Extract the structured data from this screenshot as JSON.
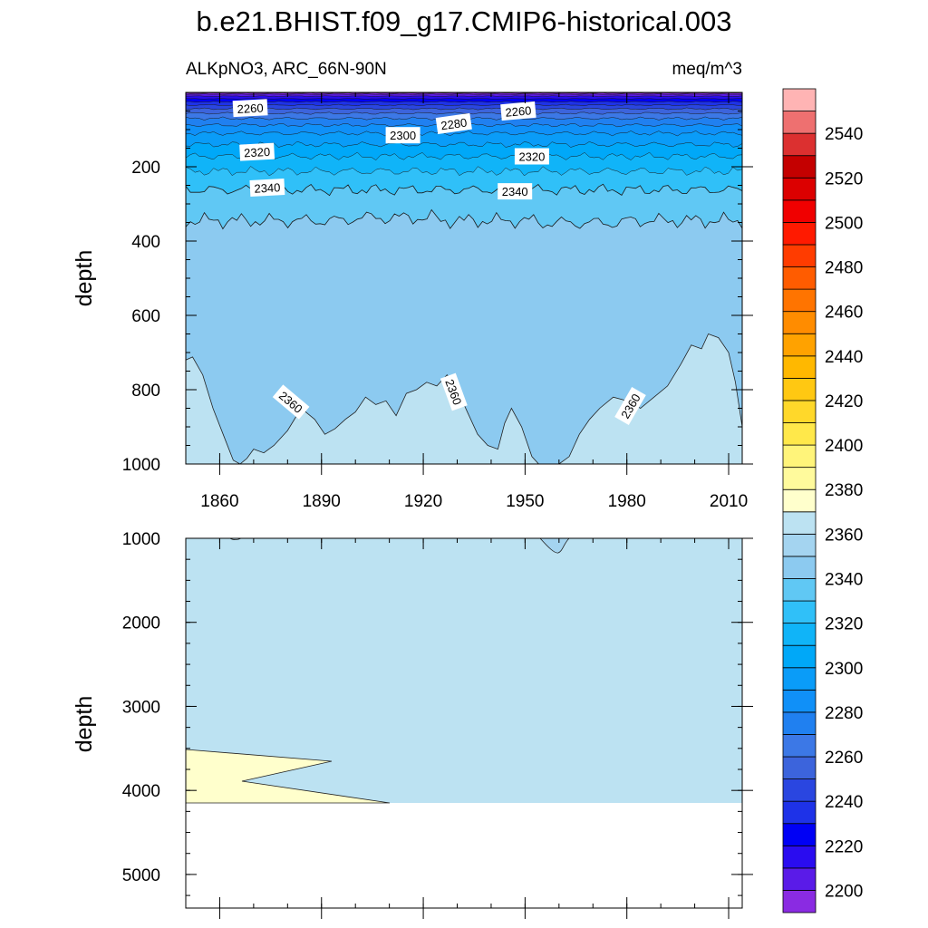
{
  "chart_data": {
    "type": "contour",
    "title": "b.e21.BHIST.f09_g17.CMIP6-historical.003",
    "left_string": "ALKpNO3, ARC_66N-90N",
    "right_string": "meq/m^3",
    "ylabel": "depth",
    "x_ticks": [
      1860,
      1890,
      1920,
      1950,
      1980,
      2010
    ],
    "xlim": [
      1850,
      2014
    ],
    "panels": [
      {
        "name": "upper",
        "ylim": [
          0,
          1000
        ],
        "y_ticks": [
          200,
          400,
          600,
          800,
          1000
        ]
      },
      {
        "name": "lower",
        "ylim": [
          1000,
          5400
        ],
        "y_ticks": [
          1000,
          2000,
          3000,
          4000,
          5000
        ]
      }
    ],
    "contour_labels": [
      {
        "text": "2260",
        "year": 1869,
        "depth": 42,
        "angle": -3
      },
      {
        "text": "2260",
        "year": 1948,
        "depth": 50,
        "angle": -5
      },
      {
        "text": "2280",
        "year": 1929,
        "depth": 84,
        "angle": -8
      },
      {
        "text": "2300",
        "year": 1914,
        "depth": 115,
        "angle": 0
      },
      {
        "text": "2320",
        "year": 1871,
        "depth": 160,
        "angle": -3
      },
      {
        "text": "2320",
        "year": 1952,
        "depth": 172,
        "angle": 0
      },
      {
        "text": "2340",
        "year": 1874,
        "depth": 256,
        "angle": -3
      },
      {
        "text": "2340",
        "year": 1947,
        "depth": 266,
        "angle": 0
      },
      {
        "text": "2360",
        "year": 1881,
        "depth": 833,
        "angle": 40
      },
      {
        "text": "2360",
        "year": 1929,
        "depth": 806,
        "angle": 70
      },
      {
        "text": "2360",
        "year": 1981,
        "depth": 844,
        "angle": -60
      }
    ],
    "levels": [
      2200,
      2210,
      2220,
      2230,
      2240,
      2250,
      2260,
      2270,
      2280,
      2290,
      2300,
      2310,
      2320,
      2330,
      2340,
      2350,
      2360,
      2370,
      2380,
      2390,
      2400,
      2410,
      2420,
      2430,
      2440,
      2450,
      2460,
      2470,
      2480,
      2490,
      2500,
      2510,
      2520,
      2530,
      2540,
      2550
    ],
    "colorbar_labels": [
      2200,
      2220,
      2240,
      2260,
      2280,
      2300,
      2320,
      2340,
      2360,
      2380,
      2400,
      2420,
      2440,
      2460,
      2480,
      2500,
      2520,
      2540
    ],
    "colors": [
      "#8a2be2",
      "#5a1be8",
      "#2a0cf0",
      "#0000f5",
      "#1e32e8",
      "#2a46e0",
      "#3c64dc",
      "#3c78e6",
      "#2080f0",
      "#1090f8",
      "#0a9cf8",
      "#00a8f8",
      "#10b4f8",
      "#30c0f8",
      "#60c8f4",
      "#8ccaf0",
      "#a4d4f0",
      "#bce2f2",
      "#ffffcc",
      "#fffa9c",
      "#fff47a",
      "#ffe84a",
      "#ffd82a",
      "#ffc812",
      "#ffb800",
      "#ffa200",
      "#ff8c00",
      "#ff7400",
      "#ff5c00",
      "#ff3c00",
      "#ff1a00",
      "#f00000",
      "#dc0000",
      "#c40000",
      "#dc3030",
      "#ee7070",
      "#ffb4b4"
    ]
  }
}
